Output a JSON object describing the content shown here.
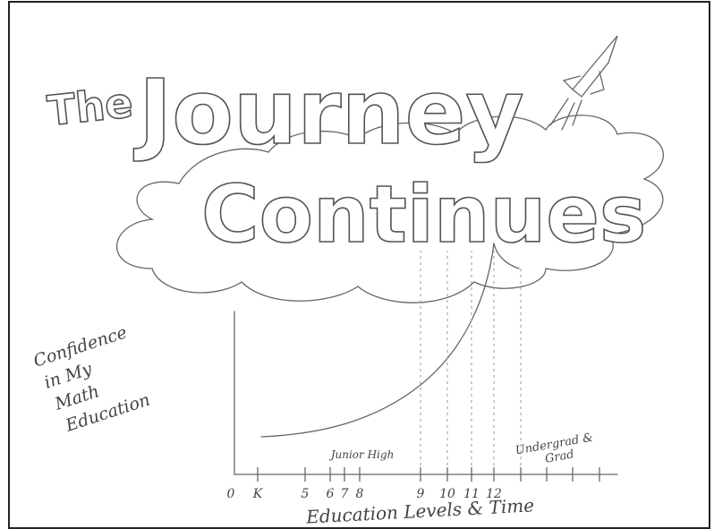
{
  "title": {
    "the": "The",
    "journey": "Journey",
    "continues": "Continues"
  },
  "axes": {
    "y_label": [
      "Confidence",
      "in My",
      "Math",
      "Education"
    ],
    "x_label": "Education Levels & Time",
    "x_ticks": [
      "0",
      "K",
      "5",
      "6",
      "7",
      "8",
      "9",
      "10",
      "11",
      "12"
    ]
  },
  "annotations": {
    "junior_high": "Junior High",
    "undergrad": [
      "Undergrad &",
      "Grad"
    ]
  }
}
